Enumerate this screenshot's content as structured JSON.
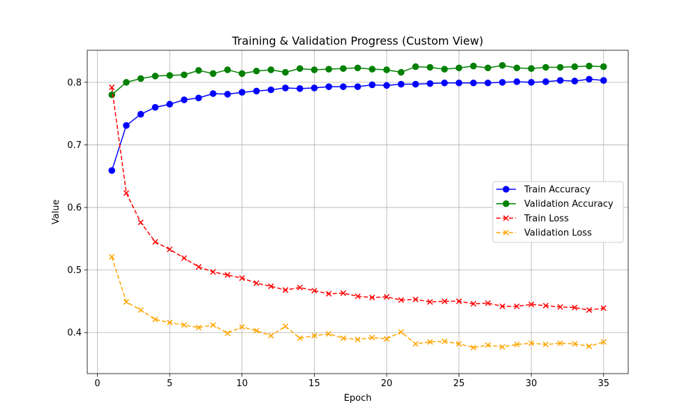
{
  "chart_data": {
    "type": "line",
    "title": "Training & Validation Progress (Custom View)",
    "xlabel": "Epoch",
    "ylabel": "Value",
    "xlim": [
      -0.7,
      36.7
    ],
    "ylim": [
      0.3344,
      0.8512
    ],
    "x_ticks": [
      0,
      5,
      10,
      15,
      20,
      25,
      30,
      35
    ],
    "y_ticks": [
      0.4,
      0.5,
      0.6,
      0.7,
      0.8
    ],
    "y_tick_labels": [
      "0.4",
      "0.5",
      "0.6",
      "0.7",
      "0.8"
    ],
    "grid": true,
    "legend_position": "center-right",
    "x": [
      1,
      2,
      3,
      4,
      5,
      6,
      7,
      8,
      9,
      10,
      11,
      12,
      13,
      14,
      15,
      16,
      17,
      18,
      19,
      20,
      21,
      22,
      23,
      24,
      25,
      26,
      27,
      28,
      29,
      30,
      31,
      32,
      33,
      34,
      35
    ],
    "series": [
      {
        "name": "Train Accuracy",
        "color": "#0000ff",
        "line_style": "solid",
        "marker": "circle",
        "values": [
          0.659,
          0.731,
          0.749,
          0.76,
          0.765,
          0.772,
          0.775,
          0.782,
          0.781,
          0.784,
          0.786,
          0.788,
          0.791,
          0.79,
          0.791,
          0.793,
          0.793,
          0.793,
          0.796,
          0.795,
          0.797,
          0.797,
          0.798,
          0.799,
          0.799,
          0.799,
          0.799,
          0.8,
          0.801,
          0.8,
          0.801,
          0.803,
          0.802,
          0.805,
          0.803
        ]
      },
      {
        "name": "Validation Accuracy",
        "color": "#008000",
        "line_style": "solid",
        "marker": "circle",
        "values": [
          0.78,
          0.8,
          0.806,
          0.81,
          0.811,
          0.812,
          0.819,
          0.814,
          0.82,
          0.814,
          0.818,
          0.82,
          0.816,
          0.822,
          0.82,
          0.821,
          0.822,
          0.823,
          0.821,
          0.82,
          0.816,
          0.825,
          0.824,
          0.821,
          0.823,
          0.826,
          0.823,
          0.827,
          0.823,
          0.822,
          0.824,
          0.824,
          0.825,
          0.826,
          0.825
        ]
      },
      {
        "name": "Train Loss",
        "color": "#ff0000",
        "line_style": "dashed",
        "marker": "x",
        "values": [
          0.792,
          0.623,
          0.576,
          0.545,
          0.533,
          0.519,
          0.505,
          0.497,
          0.492,
          0.487,
          0.479,
          0.474,
          0.468,
          0.472,
          0.467,
          0.462,
          0.463,
          0.458,
          0.456,
          0.457,
          0.452,
          0.453,
          0.449,
          0.45,
          0.45,
          0.446,
          0.447,
          0.442,
          0.442,
          0.445,
          0.443,
          0.441,
          0.44,
          0.436,
          0.439
        ]
      },
      {
        "name": "Validation Loss",
        "color": "#ffa500",
        "line_style": "dashed",
        "marker": "x",
        "values": [
          0.521,
          0.449,
          0.436,
          0.421,
          0.416,
          0.412,
          0.408,
          0.412,
          0.399,
          0.409,
          0.403,
          0.395,
          0.41,
          0.391,
          0.395,
          0.398,
          0.391,
          0.389,
          0.392,
          0.39,
          0.401,
          0.382,
          0.385,
          0.386,
          0.382,
          0.376,
          0.38,
          0.377,
          0.381,
          0.383,
          0.381,
          0.383,
          0.382,
          0.378,
          0.385
        ]
      }
    ]
  }
}
